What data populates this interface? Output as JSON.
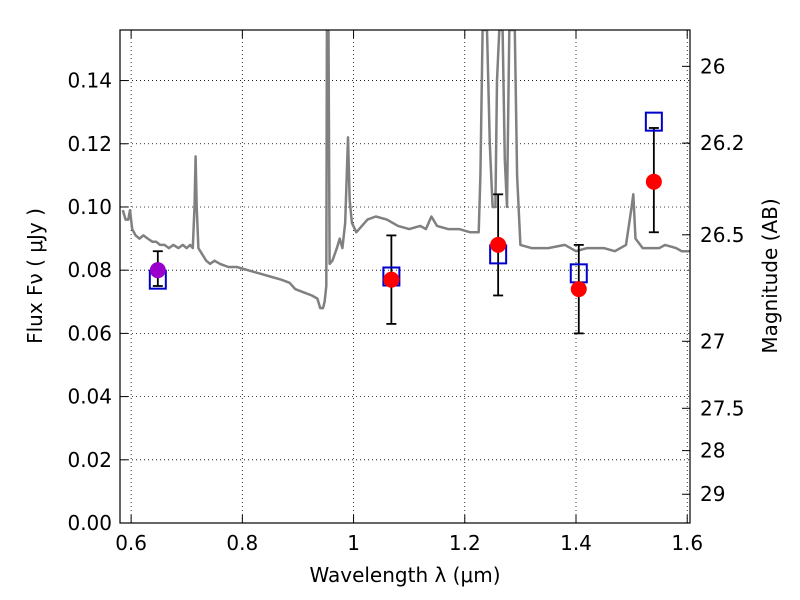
{
  "chart_data": {
    "type": "scatter",
    "xlabel": "Wavelength  λ (μm)",
    "ylabel": "Flux  Fν ( μJy )",
    "ylabel_right": "Magnitude (AB)",
    "xlim": [
      0.58,
      1.605
    ],
    "ylim": [
      0.0,
      0.156
    ],
    "grid": true,
    "x_ticks": [
      0.6,
      0.8,
      1.0,
      1.2,
      1.4,
      1.6
    ],
    "x_tick_labels": [
      "0.6",
      "0.8",
      "1",
      "1.2",
      "1.4",
      "1.6"
    ],
    "y_ticks": [
      0.0,
      0.02,
      0.04,
      0.06,
      0.08,
      0.1,
      0.12,
      0.14
    ],
    "y_tick_labels": [
      "0.00",
      "0.02",
      "0.04",
      "0.06",
      "0.08",
      "0.10",
      "0.12",
      "0.14"
    ],
    "right_ticks": [
      {
        "label": "26",
        "flux": 0.1445
      },
      {
        "label": "26.2",
        "flux": 0.1202
      },
      {
        "label": "26.5",
        "flux": 0.0912
      },
      {
        "label": "27",
        "flux": 0.0575
      },
      {
        "label": "27.5",
        "flux": 0.0363
      },
      {
        "label": "28",
        "flux": 0.0229
      },
      {
        "label": "29",
        "flux": 0.0091
      }
    ],
    "series": [
      {
        "kind": "line",
        "color": "#808080",
        "points": [
          [
            0.585,
            0.099
          ],
          [
            0.59,
            0.096
          ],
          [
            0.595,
            0.096
          ],
          [
            0.598,
            0.099
          ],
          [
            0.602,
            0.093
          ],
          [
            0.608,
            0.091
          ],
          [
            0.615,
            0.09
          ],
          [
            0.622,
            0.091
          ],
          [
            0.63,
            0.09
          ],
          [
            0.638,
            0.089
          ],
          [
            0.645,
            0.089
          ],
          [
            0.652,
            0.088
          ],
          [
            0.66,
            0.088
          ],
          [
            0.668,
            0.087
          ],
          [
            0.676,
            0.088
          ],
          [
            0.685,
            0.087
          ],
          [
            0.693,
            0.088
          ],
          [
            0.7,
            0.087
          ],
          [
            0.706,
            0.088
          ],
          [
            0.711,
            0.087
          ],
          [
            0.714,
            0.1
          ],
          [
            0.716,
            0.116
          ],
          [
            0.718,
            0.1
          ],
          [
            0.721,
            0.087
          ],
          [
            0.728,
            0.085
          ],
          [
            0.735,
            0.083
          ],
          [
            0.742,
            0.082
          ],
          [
            0.75,
            0.083
          ],
          [
            0.76,
            0.082
          ],
          [
            0.775,
            0.081
          ],
          [
            0.79,
            0.081
          ],
          [
            0.81,
            0.08
          ],
          [
            0.83,
            0.079
          ],
          [
            0.85,
            0.078
          ],
          [
            0.87,
            0.077
          ],
          [
            0.885,
            0.076
          ],
          [
            0.895,
            0.074
          ],
          [
            0.91,
            0.073
          ],
          [
            0.925,
            0.072
          ],
          [
            0.935,
            0.071
          ],
          [
            0.94,
            0.068
          ],
          [
            0.945,
            0.068
          ],
          [
            0.948,
            0.07
          ],
          [
            0.951,
            0.075
          ],
          [
            0.952,
            0.156
          ],
          [
            0.955,
            0.156
          ],
          [
            0.957,
            0.082
          ],
          [
            0.962,
            0.083
          ],
          [
            0.97,
            0.087
          ],
          [
            0.975,
            0.09
          ],
          [
            0.98,
            0.087
          ],
          [
            0.985,
            0.095
          ],
          [
            0.99,
            0.122
          ],
          [
            0.993,
            0.102
          ],
          [
            0.997,
            0.095
          ],
          [
            1.005,
            0.092
          ],
          [
            1.015,
            0.094
          ],
          [
            1.025,
            0.096
          ],
          [
            1.04,
            0.097
          ],
          [
            1.06,
            0.096
          ],
          [
            1.08,
            0.094
          ],
          [
            1.1,
            0.093
          ],
          [
            1.12,
            0.094
          ],
          [
            1.13,
            0.093
          ],
          [
            1.14,
            0.097
          ],
          [
            1.15,
            0.094
          ],
          [
            1.17,
            0.093
          ],
          [
            1.19,
            0.093
          ],
          [
            1.21,
            0.092
          ],
          [
            1.225,
            0.092
          ],
          [
            1.228,
            0.11
          ],
          [
            1.232,
            0.156
          ],
          [
            1.24,
            0.156
          ],
          [
            1.245,
            0.12
          ],
          [
            1.25,
            0.1
          ],
          [
            1.255,
            0.1
          ],
          [
            1.258,
            0.14
          ],
          [
            1.262,
            0.156
          ],
          [
            1.268,
            0.156
          ],
          [
            1.272,
            0.115
          ],
          [
            1.276,
            0.1
          ],
          [
            1.28,
            0.156
          ],
          [
            1.29,
            0.156
          ],
          [
            1.294,
            0.11
          ],
          [
            1.3,
            0.088
          ],
          [
            1.32,
            0.087
          ],
          [
            1.35,
            0.087
          ],
          [
            1.38,
            0.088
          ],
          [
            1.4,
            0.086
          ],
          [
            1.42,
            0.087
          ],
          [
            1.45,
            0.087
          ],
          [
            1.47,
            0.086
          ],
          [
            1.49,
            0.088
          ],
          [
            1.5,
            0.1
          ],
          [
            1.503,
            0.104
          ],
          [
            1.507,
            0.09
          ],
          [
            1.52,
            0.087
          ],
          [
            1.55,
            0.087
          ],
          [
            1.56,
            0.088
          ],
          [
            1.58,
            0.087
          ],
          [
            1.59,
            0.086
          ],
          [
            1.605,
            0.086
          ]
        ]
      },
      {
        "kind": "open_square",
        "color": "#0000cc",
        "points": [
          [
            0.648,
            0.077
          ],
          [
            1.068,
            0.078
          ],
          [
            1.26,
            0.085
          ],
          [
            1.405,
            0.079
          ],
          [
            1.54,
            0.127
          ]
        ]
      },
      {
        "kind": "errorbar",
        "color": "#000000",
        "points": [
          {
            "x": 0.648,
            "low": 0.075,
            "high": 0.086
          },
          {
            "x": 1.068,
            "low": 0.063,
            "high": 0.091
          },
          {
            "x": 1.26,
            "low": 0.072,
            "high": 0.104
          },
          {
            "x": 1.405,
            "low": 0.06,
            "high": 0.088
          },
          {
            "x": 1.54,
            "low": 0.092,
            "high": 0.125
          }
        ]
      },
      {
        "kind": "filled_circle",
        "color": "#ff0000",
        "points": [
          {
            "x": 0.648,
            "y": 0.08,
            "color": "#9900cc"
          },
          {
            "x": 1.068,
            "y": 0.077
          },
          {
            "x": 1.26,
            "y": 0.088
          },
          {
            "x": 1.405,
            "y": 0.074
          },
          {
            "x": 1.54,
            "y": 0.108
          }
        ]
      }
    ]
  }
}
